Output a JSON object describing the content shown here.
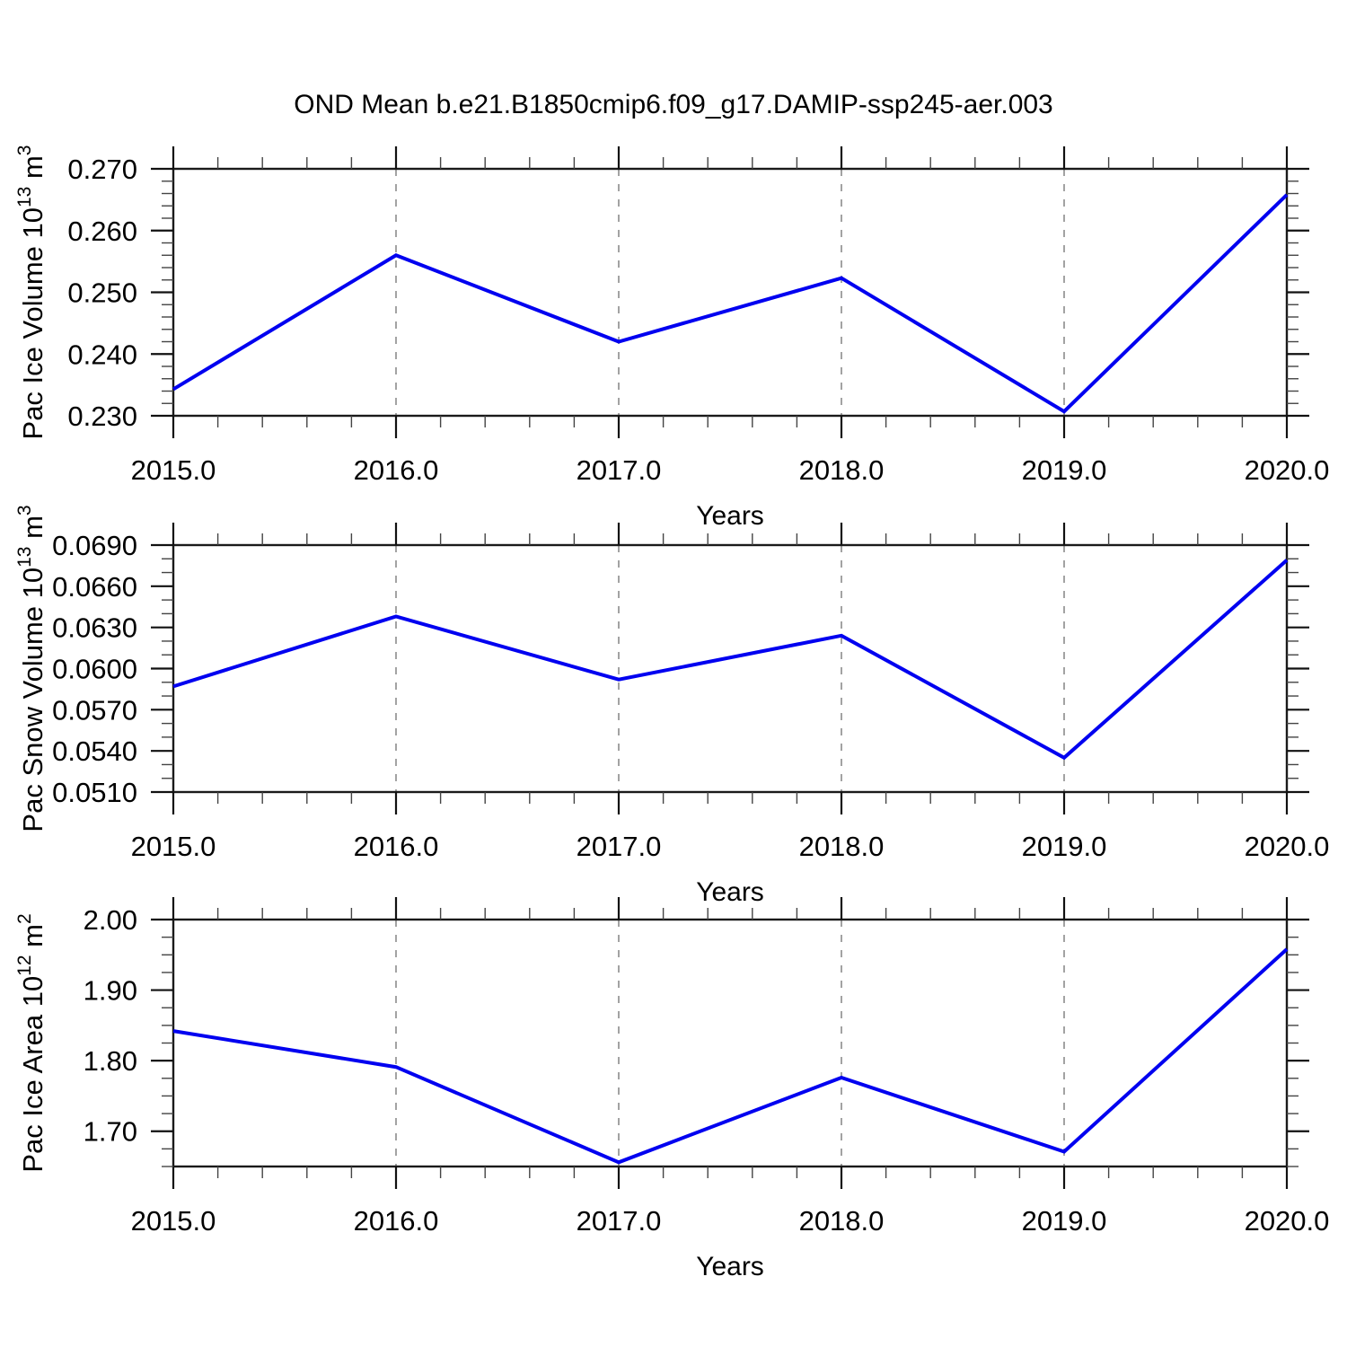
{
  "title": "OND Mean b.e21.B1850cmip6.f09_g17.DAMIP-ssp245-aer.003",
  "figure": {
    "line_color": "#0000f0",
    "frame_color": "#1a1a1a",
    "major_tick_color": "#111111",
    "minor_tick_color": "#444444",
    "grid_color": "#8c8c8c",
    "text_color": "#000000",
    "background": "#ffffff"
  },
  "chart_data": [
    {
      "type": "line",
      "title": "OND Mean b.e21.B1850cmip6.f09_g17.DAMIP-ssp245-aer.003",
      "xlabel": "Years",
      "ylabel": "Pac Ice Volume 10^13 m^3",
      "ylabel_parts": {
        "base": "Pac Ice Volume 10",
        "exp": "13",
        "unit": " m",
        "unit_exp": "3"
      },
      "x": [
        2015,
        2016,
        2017,
        2018,
        2019,
        2020
      ],
      "x_tick_labels": [
        "2015.0",
        "2016.0",
        "2017.0",
        "2018.0",
        "2019.0",
        "2020.0"
      ],
      "values": [
        0.2343,
        0.256,
        0.242,
        0.2523,
        0.2307,
        0.2658
      ],
      "xlim": [
        2015,
        2020
      ],
      "ylim": [
        0.23,
        0.27
      ],
      "y_major_ticks": [
        0.23,
        0.24,
        0.25,
        0.26,
        0.27
      ],
      "y_tick_labels": [
        "0.230",
        "0.240",
        "0.250",
        "0.260",
        "0.270"
      ],
      "y_minor_step": 0.002,
      "x_minor_step": 0.2,
      "grid": "vertical dashed at interior year ticks",
      "legend": "none"
    },
    {
      "type": "line",
      "title": "",
      "xlabel": "Years",
      "ylabel": "Pac Snow Volume 10^13 m^3",
      "ylabel_parts": {
        "base": "Pac Snow Volume 10",
        "exp": "13",
        "unit": " m",
        "unit_exp": "3"
      },
      "x": [
        2015,
        2016,
        2017,
        2018,
        2019,
        2020
      ],
      "x_tick_labels": [
        "2015.0",
        "2016.0",
        "2017.0",
        "2018.0",
        "2019.0",
        "2020.0"
      ],
      "values": [
        0.0587,
        0.0638,
        0.0592,
        0.0624,
        0.0535,
        0.0679
      ],
      "xlim": [
        2015,
        2020
      ],
      "ylim": [
        0.051,
        0.069
      ],
      "y_major_ticks": [
        0.051,
        0.054,
        0.057,
        0.06,
        0.063,
        0.066,
        0.069
      ],
      "y_tick_labels": [
        "0.0510",
        "0.0540",
        "0.0570",
        "0.0600",
        "0.0630",
        "0.0660",
        "0.0690"
      ],
      "y_minor_step": 0.001,
      "x_minor_step": 0.2,
      "grid": "vertical dashed at interior year ticks",
      "legend": "none"
    },
    {
      "type": "line",
      "title": "",
      "xlabel": "Years",
      "ylabel": "Pac Ice Area 10^12 m^2",
      "ylabel_parts": {
        "base": "Pac Ice Area 10",
        "exp": "12",
        "unit": " m",
        "unit_exp": "2"
      },
      "x": [
        2015,
        2016,
        2017,
        2018,
        2019,
        2020
      ],
      "x_tick_labels": [
        "2015.0",
        "2016.0",
        "2017.0",
        "2018.0",
        "2019.0",
        "2020.0"
      ],
      "values": [
        1.842,
        1.791,
        1.656,
        1.776,
        1.671,
        1.958
      ],
      "xlim": [
        2015,
        2020
      ],
      "ylim": [
        1.65,
        2.0
      ],
      "y_major_ticks": [
        1.7,
        1.8,
        1.9,
        2.0
      ],
      "y_tick_labels": [
        "1.70",
        "1.80",
        "1.90",
        "2.00"
      ],
      "y_minor_step": 0.025,
      "x_minor_step": 0.2,
      "grid": "vertical dashed at interior year ticks",
      "legend": "none"
    }
  ]
}
